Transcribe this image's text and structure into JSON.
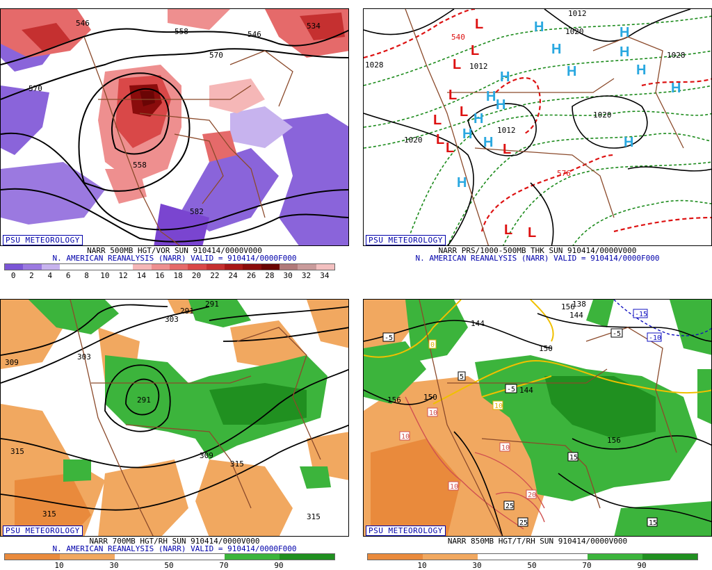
{
  "psu_label": "PSU METEOROLOGY",
  "panels": [
    {
      "id": "vort",
      "title": "NARR 500MB HGT/VOR SUN 910414/0000V000",
      "subtitle": "N. AMERICAN REANALYSIS (NARR) VALID = 910414/0000F000",
      "scale_labels": [
        "0",
        "2",
        "4",
        "6",
        "8",
        "10",
        "12",
        "14",
        "16",
        "18",
        "20",
        "22",
        "24",
        "26",
        "28",
        "30",
        "32",
        "34"
      ],
      "scale_colors": [
        "#7b55d6",
        "#9b79e0",
        "#c7b3ee",
        "#ffffff",
        "#ffffff",
        "#ffffff",
        "#ffffff",
        "#f5b7b7",
        "#ee8f8f",
        "#e56a6a",
        "#d94848",
        "#c53030",
        "#a81818",
        "#8a0c0c",
        "#6a0505",
        "#b07a7a",
        "#c99b9b",
        "#f3c0c0"
      ],
      "contour_labels": [
        "546",
        "558",
        "546",
        "570",
        "570",
        "582",
        "558",
        "534"
      ]
    },
    {
      "id": "pres",
      "title": "NARR PRS/1000-500MB THK SUN 910414/0000V000",
      "subtitle": "N. AMERICAN REANALYSIS (NARR) VALID = 910414/0000F000",
      "contour_labels": [
        "1012",
        "1020",
        "1028",
        "1028",
        "1012",
        "1020",
        "1020",
        "1012",
        "540",
        "576"
      ],
      "high_symbol": "H",
      "low_symbol": "L"
    },
    {
      "id": "rh700",
      "title": "NARR 700MB HGT/RH SUN 910414/0000V000",
      "subtitle": "N. AMERICAN REANALYSIS (NARR) VALID = 910414/0000F000",
      "scale_labels": [
        "10",
        "30",
        "50",
        "70",
        "90"
      ],
      "contour_labels": [
        "291",
        "303",
        "291",
        "309",
        "303",
        "291",
        "315",
        "309",
        "315",
        "315",
        "315"
      ]
    },
    {
      "id": "t850",
      "title": "NARR 850MB HGT/T/RH SUN 910414/0000V000",
      "scale_labels": [
        "10",
        "30",
        "50",
        "70",
        "90"
      ],
      "contour_labels": [
        "144",
        "156",
        "150",
        "144",
        "156",
        "156",
        "138",
        "150",
        "144"
      ],
      "temp_labels": [
        "-5",
        "0",
        "5",
        "-5",
        "10",
        "10",
        "10",
        "10",
        "10",
        "15",
        "20",
        "25",
        "25",
        "15",
        "-15",
        "-10",
        "-5"
      ]
    }
  ]
}
